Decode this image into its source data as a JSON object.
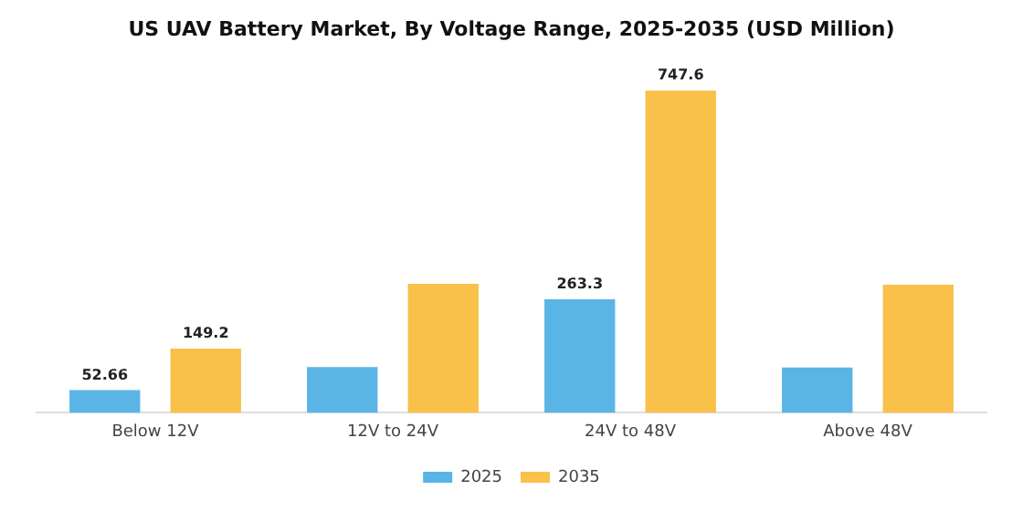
{
  "chart_data": {
    "type": "bar",
    "title": "US UAV Battery Market, By Voltage Range, 2025-2035 (USD Million)",
    "categories": [
      "Below 12V",
      "12V to 24V",
      "24V to 48V",
      "Above 48V"
    ],
    "series": [
      {
        "name": "2025",
        "color": "#5ab4e5",
        "values": [
          52.66,
          106,
          263.3,
          105
        ],
        "value_labels": [
          "52.66",
          null,
          "263.3",
          null
        ]
      },
      {
        "name": "2035",
        "color": "#f9c04a",
        "values": [
          149.2,
          299,
          747.6,
          297
        ],
        "value_labels": [
          "149.2",
          null,
          "747.6",
          null
        ]
      }
    ],
    "legend": "bottom",
    "grid": false
  }
}
